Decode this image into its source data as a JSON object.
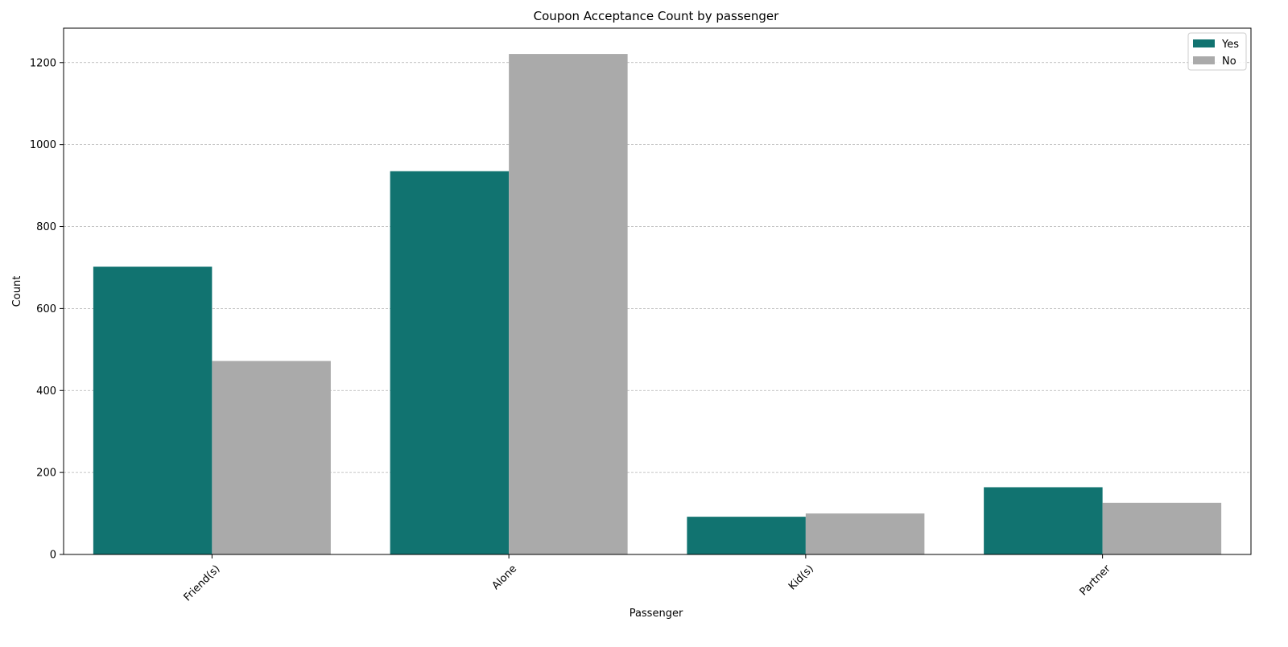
{
  "chart_data": {
    "type": "bar",
    "title": "Coupon Acceptance Count by passenger",
    "xlabel": "Passenger",
    "ylabel": "Count",
    "categories": [
      "Friend(s)",
      "Alone",
      "Kid(s)",
      "Partner"
    ],
    "series": [
      {
        "name": "Yes",
        "values": [
          702,
          935,
          92,
          164
        ],
        "color": "#117370"
      },
      {
        "name": "No",
        "values": [
          472,
          1221,
          100,
          126
        ],
        "color": "#aaaaaa"
      }
    ],
    "ylim": [
      0,
      1284
    ],
    "yticks": [
      0,
      200,
      400,
      600,
      800,
      1000,
      1200
    ],
    "grid": "y-dashed",
    "legend_position": "top-right"
  }
}
